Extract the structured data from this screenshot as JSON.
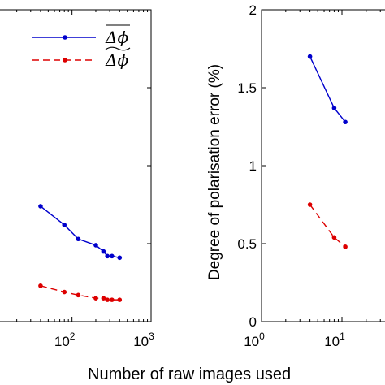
{
  "chart_data": [
    {
      "type": "line",
      "panel": "left",
      "xscale": "log",
      "xlim": [
        1,
        1000
      ],
      "ylim": [
        0,
        2
      ],
      "x_tick_labels": [
        {
          "value": 100,
          "base": "10",
          "exp": "2"
        },
        {
          "value": 1000,
          "base": "10",
          "exp": "3"
        }
      ],
      "series": [
        {
          "name": "Δφ (overline)",
          "color": "#0000cc",
          "style": "solid",
          "x": [
            40,
            80,
            120,
            200,
            250,
            280,
            320,
            400
          ],
          "y": [
            0.74,
            0.62,
            0.53,
            0.49,
            0.45,
            0.42,
            0.42,
            0.41
          ]
        },
        {
          "name": "Δφ (widetilde)",
          "color": "#dd0000",
          "style": "dashed",
          "x": [
            40,
            80,
            120,
            200,
            250,
            280,
            320,
            400
          ],
          "y": [
            0.23,
            0.19,
            0.17,
            0.15,
            0.15,
            0.14,
            0.14,
            0.14
          ]
        }
      ],
      "legend": {
        "position": "top-right",
        "entries": [
          "Δϕ",
          "Δϕ"
        ]
      },
      "grid": false
    },
    {
      "type": "line",
      "panel": "right",
      "xscale": "log",
      "xlim": [
        1,
        100
      ],
      "ylim": [
        0,
        2
      ],
      "ylabel": "Degree of polarisation error (%)",
      "y_tick_labels": [
        "0",
        "0.5",
        "1",
        "1.5",
        "2"
      ],
      "y_tick_values": [
        0,
        0.5,
        1,
        1.5,
        2
      ],
      "x_tick_labels": [
        {
          "value": 1,
          "base": "10",
          "exp": "0"
        },
        {
          "value": 10,
          "base": "10",
          "exp": "1"
        }
      ],
      "series": [
        {
          "name": "blue",
          "color": "#0000cc",
          "style": "solid",
          "x": [
            4,
            8,
            11
          ],
          "y": [
            1.7,
            1.37,
            1.28
          ]
        },
        {
          "name": "red",
          "color": "#dd0000",
          "style": "dashed",
          "x": [
            4,
            8,
            11
          ],
          "y": [
            0.75,
            0.54,
            0.48
          ]
        }
      ],
      "grid": false
    }
  ],
  "xlabel": "Number of raw images used"
}
